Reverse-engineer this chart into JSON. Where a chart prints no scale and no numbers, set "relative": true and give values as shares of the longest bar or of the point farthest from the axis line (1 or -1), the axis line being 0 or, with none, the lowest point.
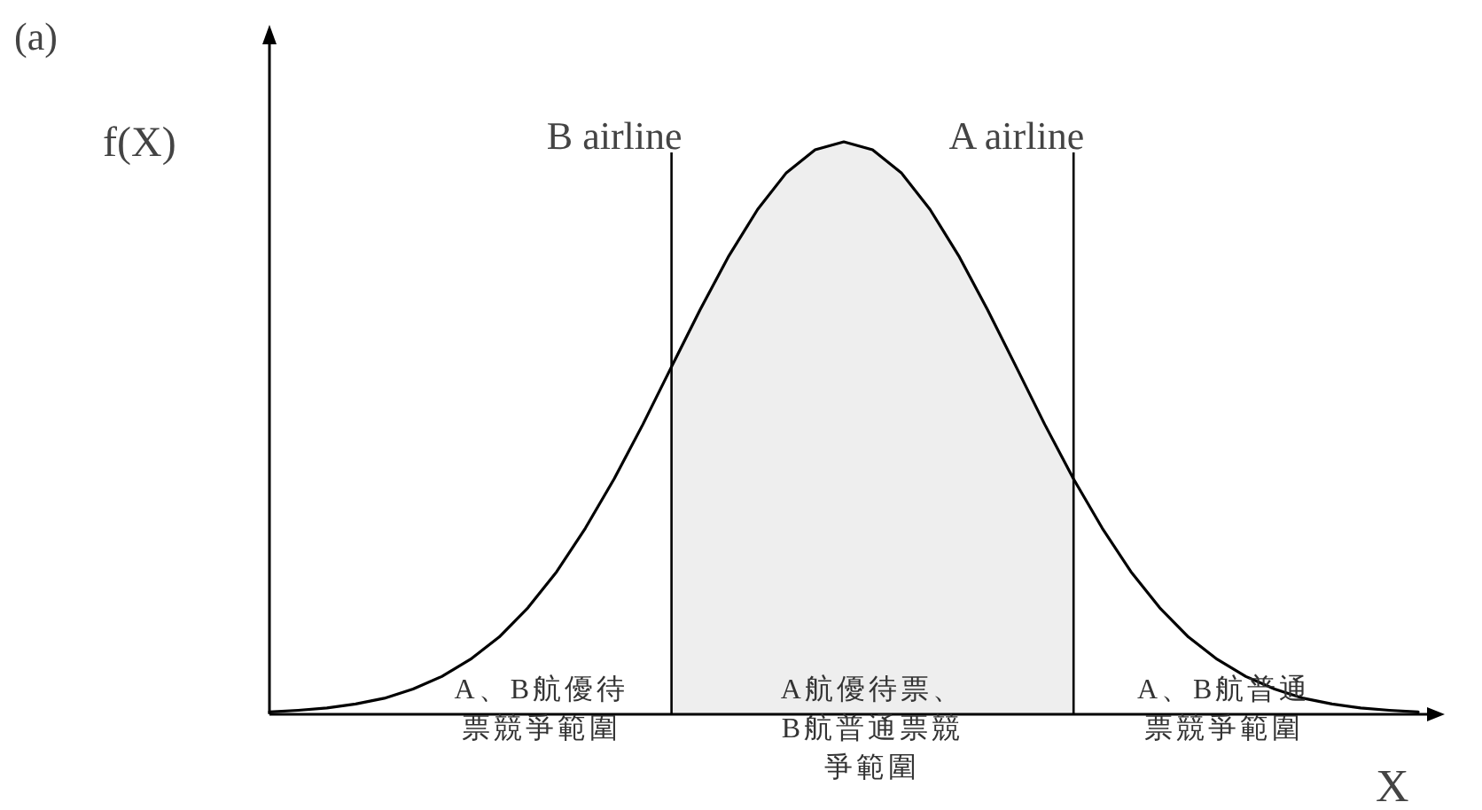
{
  "chart_data": {
    "type": "line",
    "relative": true,
    "xlabel": "X",
    "ylabel": "f(X)",
    "categories": [
      null,
      null,
      null,
      null,
      null,
      null,
      null,
      null,
      null,
      null,
      null,
      null,
      null,
      null,
      null,
      null,
      null,
      null,
      null,
      null,
      null,
      null,
      null,
      null,
      null,
      null,
      null,
      null,
      null,
      null,
      null,
      null,
      null,
      null,
      null,
      null,
      null,
      null,
      null,
      null,
      null
    ],
    "series": [
      {
        "type": "area",
        "color": "#eeeeee",
        "values": [
          null,
          null,
          null,
          null,
          null,
          null,
          null,
          null,
          null,
          null,
          null,
          null,
          null,
          null,
          0.607,
          0.707,
          0.801,
          0.882,
          0.946,
          0.986,
          1,
          0.986,
          0.946,
          0.882,
          0.801,
          0.707,
          0.607,
          0.506,
          0.411,
          null,
          null,
          null,
          null,
          null,
          null,
          null,
          null,
          null,
          null,
          null,
          null
        ]
      },
      {
        "color": "#000000",
        "values": [
          0.004,
          0.007,
          0.011,
          0.018,
          0.028,
          0.044,
          0.066,
          0.096,
          0.135,
          0.186,
          0.249,
          0.325,
          0.411,
          0.506,
          0.607,
          0.707,
          0.801,
          0.882,
          0.946,
          0.986,
          1,
          0.986,
          0.946,
          0.882,
          0.801,
          0.707,
          0.607,
          0.506,
          0.411,
          0.325,
          0.249,
          0.186,
          0.135,
          0.096,
          0.066,
          0.044,
          0.028,
          0.018,
          0.011,
          0.007,
          0.004
        ]
      }
    ],
    "annotations": [
      "(a)",
      "B airline",
      "A airline",
      "A、B航優待票競爭範圍",
      "A航優待票、B航普通票競爭範圍",
      "A、B航普通票競爭範圍"
    ]
  }
}
